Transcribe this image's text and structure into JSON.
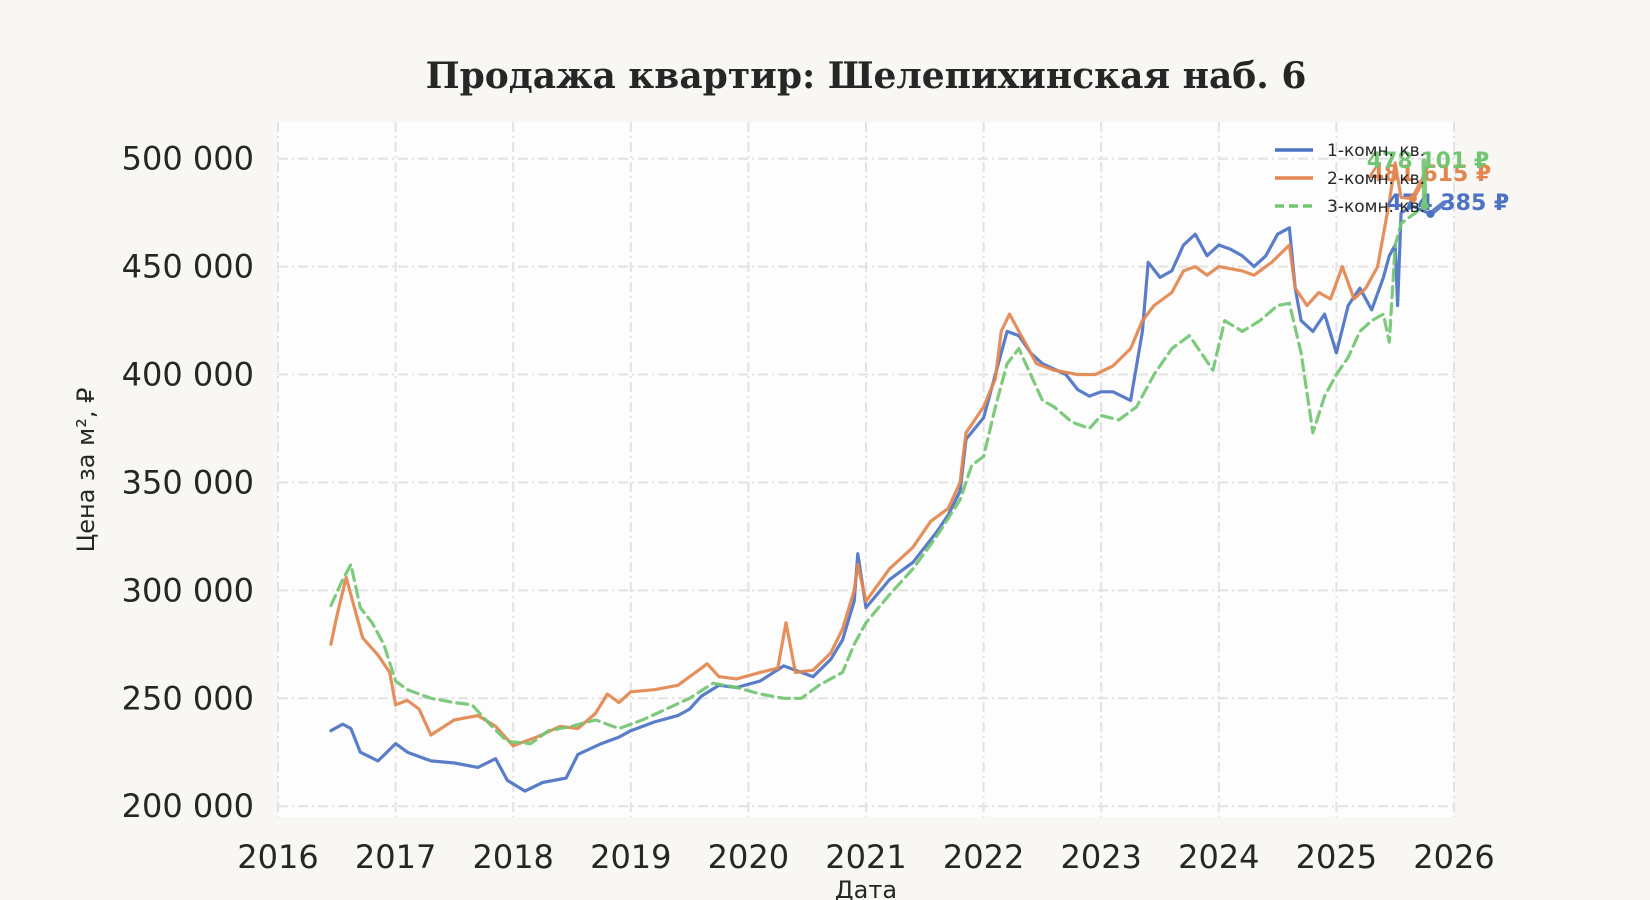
{
  "chart_data": {
    "type": "line",
    "title": "Продажа квартир: Шелепихинская наб. 6",
    "xlabel": "Дата",
    "ylabel": "Цена за м², ₽",
    "xlim": [
      2016,
      2026
    ],
    "ylim": [
      195000,
      517000
    ],
    "x_ticks": [
      2016,
      2017,
      2018,
      2019,
      2020,
      2021,
      2022,
      2023,
      2024,
      2025,
      2026
    ],
    "x_tick_labels": [
      "2016",
      "2017",
      "2018",
      "2019",
      "2020",
      "2021",
      "2022",
      "2023",
      "2024",
      "2025",
      "2026"
    ],
    "y_ticks": [
      200000,
      250000,
      300000,
      350000,
      400000,
      450000,
      500000
    ],
    "y_tick_labels": [
      "200 000",
      "250 000",
      "300 000",
      "350 000",
      "400 000",
      "450 000",
      "500 000"
    ],
    "grid": true,
    "legend_position": "top-right",
    "series": [
      {
        "name": "1-комн. кв.",
        "color": "#4c72c4",
        "style": "solid",
        "end_label": "474 385 ₽",
        "points": [
          [
            2016.45,
            235000
          ],
          [
            2016.55,
            238000
          ],
          [
            2016.62,
            236000
          ],
          [
            2016.7,
            225000
          ],
          [
            2016.85,
            221000
          ],
          [
            2017.0,
            229000
          ],
          [
            2017.1,
            225000
          ],
          [
            2017.3,
            221000
          ],
          [
            2017.5,
            220000
          ],
          [
            2017.7,
            218000
          ],
          [
            2017.85,
            222000
          ],
          [
            2017.95,
            212000
          ],
          [
            2018.1,
            207000
          ],
          [
            2018.25,
            211000
          ],
          [
            2018.45,
            213000
          ],
          [
            2018.55,
            224000
          ],
          [
            2018.75,
            229000
          ],
          [
            2018.9,
            232000
          ],
          [
            2019.0,
            235000
          ],
          [
            2019.2,
            239000
          ],
          [
            2019.4,
            242000
          ],
          [
            2019.5,
            245000
          ],
          [
            2019.6,
            251000
          ],
          [
            2019.75,
            256000
          ],
          [
            2019.9,
            255000
          ],
          [
            2020.1,
            258000
          ],
          [
            2020.3,
            265000
          ],
          [
            2020.45,
            262000
          ],
          [
            2020.55,
            260000
          ],
          [
            2020.7,
            268000
          ],
          [
            2020.8,
            277000
          ],
          [
            2020.9,
            295000
          ],
          [
            2020.93,
            317000
          ],
          [
            2021.0,
            292000
          ],
          [
            2021.2,
            305000
          ],
          [
            2021.4,
            313000
          ],
          [
            2021.6,
            327000
          ],
          [
            2021.7,
            335000
          ],
          [
            2021.8,
            346000
          ],
          [
            2021.85,
            370000
          ],
          [
            2022.0,
            380000
          ],
          [
            2022.1,
            400000
          ],
          [
            2022.2,
            420000
          ],
          [
            2022.3,
            418000
          ],
          [
            2022.4,
            410000
          ],
          [
            2022.5,
            405000
          ],
          [
            2022.7,
            400000
          ],
          [
            2022.8,
            393000
          ],
          [
            2022.9,
            390000
          ],
          [
            2023.0,
            392000
          ],
          [
            2023.1,
            392000
          ],
          [
            2023.25,
            388000
          ],
          [
            2023.35,
            420000
          ],
          [
            2023.4,
            452000
          ],
          [
            2023.5,
            445000
          ],
          [
            2023.6,
            448000
          ],
          [
            2023.7,
            460000
          ],
          [
            2023.8,
            465000
          ],
          [
            2023.9,
            455000
          ],
          [
            2024.0,
            460000
          ],
          [
            2024.1,
            458000
          ],
          [
            2024.2,
            455000
          ],
          [
            2024.3,
            450000
          ],
          [
            2024.4,
            455000
          ],
          [
            2024.5,
            465000
          ],
          [
            2024.6,
            468000
          ],
          [
            2024.65,
            440000
          ],
          [
            2024.7,
            425000
          ],
          [
            2024.8,
            420000
          ],
          [
            2024.9,
            428000
          ],
          [
            2025.0,
            410000
          ],
          [
            2025.1,
            432000
          ],
          [
            2025.2,
            440000
          ],
          [
            2025.3,
            430000
          ],
          [
            2025.4,
            445000
          ],
          [
            2025.45,
            455000
          ],
          [
            2025.5,
            460000
          ],
          [
            2025.52,
            432000
          ],
          [
            2025.55,
            475000
          ],
          [
            2025.65,
            478000
          ],
          [
            2025.8,
            474385
          ]
        ]
      },
      {
        "name": "2-комн. кв.",
        "color": "#e3854f",
        "style": "solid",
        "end_label": "481 615 ₽",
        "points": [
          [
            2016.45,
            275000
          ],
          [
            2016.5,
            288000
          ],
          [
            2016.58,
            306000
          ],
          [
            2016.65,
            292000
          ],
          [
            2016.72,
            278000
          ],
          [
            2016.85,
            270000
          ],
          [
            2016.95,
            262000
          ],
          [
            2017.0,
            247000
          ],
          [
            2017.1,
            249000
          ],
          [
            2017.2,
            245000
          ],
          [
            2017.3,
            233000
          ],
          [
            2017.5,
            240000
          ],
          [
            2017.7,
            242000
          ],
          [
            2017.85,
            237000
          ],
          [
            2018.0,
            228000
          ],
          [
            2018.2,
            232000
          ],
          [
            2018.4,
            237000
          ],
          [
            2018.55,
            236000
          ],
          [
            2018.7,
            243000
          ],
          [
            2018.8,
            252000
          ],
          [
            2018.9,
            248000
          ],
          [
            2019.0,
            253000
          ],
          [
            2019.2,
            254000
          ],
          [
            2019.4,
            256000
          ],
          [
            2019.55,
            262000
          ],
          [
            2019.65,
            266000
          ],
          [
            2019.75,
            260000
          ],
          [
            2019.9,
            259000
          ],
          [
            2020.1,
            262000
          ],
          [
            2020.25,
            264000
          ],
          [
            2020.32,
            285000
          ],
          [
            2020.4,
            262000
          ],
          [
            2020.55,
            263000
          ],
          [
            2020.7,
            271000
          ],
          [
            2020.8,
            282000
          ],
          [
            2020.9,
            300000
          ],
          [
            2020.93,
            312000
          ],
          [
            2021.0,
            295000
          ],
          [
            2021.2,
            310000
          ],
          [
            2021.4,
            320000
          ],
          [
            2021.55,
            332000
          ],
          [
            2021.7,
            338000
          ],
          [
            2021.8,
            350000
          ],
          [
            2021.85,
            373000
          ],
          [
            2022.0,
            385000
          ],
          [
            2022.1,
            398000
          ],
          [
            2022.15,
            420000
          ],
          [
            2022.22,
            428000
          ],
          [
            2022.35,
            415000
          ],
          [
            2022.45,
            405000
          ],
          [
            2022.6,
            402000
          ],
          [
            2022.8,
            400000
          ],
          [
            2022.95,
            400000
          ],
          [
            2023.1,
            404000
          ],
          [
            2023.25,
            412000
          ],
          [
            2023.35,
            425000
          ],
          [
            2023.45,
            432000
          ],
          [
            2023.6,
            438000
          ],
          [
            2023.7,
            448000
          ],
          [
            2023.8,
            450000
          ],
          [
            2023.9,
            446000
          ],
          [
            2024.0,
            450000
          ],
          [
            2024.2,
            448000
          ],
          [
            2024.3,
            446000
          ],
          [
            2024.45,
            452000
          ],
          [
            2024.6,
            460000
          ],
          [
            2024.65,
            440000
          ],
          [
            2024.75,
            432000
          ],
          [
            2024.85,
            438000
          ],
          [
            2024.95,
            435000
          ],
          [
            2025.05,
            450000
          ],
          [
            2025.15,
            435000
          ],
          [
            2025.25,
            440000
          ],
          [
            2025.35,
            450000
          ],
          [
            2025.45,
            480000
          ],
          [
            2025.5,
            498000
          ],
          [
            2025.55,
            482000
          ],
          [
            2025.65,
            481615
          ]
        ]
      },
      {
        "name": "3-комн. кв.",
        "color": "#72c672",
        "style": "dashed",
        "end_label": "478 101 ₽",
        "points": [
          [
            2016.45,
            293000
          ],
          [
            2016.55,
            305000
          ],
          [
            2016.62,
            312000
          ],
          [
            2016.7,
            292000
          ],
          [
            2016.8,
            285000
          ],
          [
            2016.9,
            275000
          ],
          [
            2017.0,
            258000
          ],
          [
            2017.1,
            254000
          ],
          [
            2017.3,
            250000
          ],
          [
            2017.5,
            248000
          ],
          [
            2017.65,
            247000
          ],
          [
            2017.8,
            238000
          ],
          [
            2017.95,
            230000
          ],
          [
            2018.15,
            229000
          ],
          [
            2018.3,
            235000
          ],
          [
            2018.5,
            237000
          ],
          [
            2018.7,
            240000
          ],
          [
            2018.9,
            236000
          ],
          [
            2019.1,
            240000
          ],
          [
            2019.3,
            245000
          ],
          [
            2019.5,
            250000
          ],
          [
            2019.7,
            257000
          ],
          [
            2019.9,
            255000
          ],
          [
            2020.1,
            252000
          ],
          [
            2020.3,
            250000
          ],
          [
            2020.45,
            250000
          ],
          [
            2020.6,
            256000
          ],
          [
            2020.8,
            262000
          ],
          [
            2020.9,
            275000
          ],
          [
            2021.0,
            285000
          ],
          [
            2021.2,
            298000
          ],
          [
            2021.4,
            310000
          ],
          [
            2021.6,
            325000
          ],
          [
            2021.8,
            342000
          ],
          [
            2021.9,
            358000
          ],
          [
            2022.0,
            362000
          ],
          [
            2022.1,
            385000
          ],
          [
            2022.2,
            405000
          ],
          [
            2022.3,
            412000
          ],
          [
            2022.4,
            400000
          ],
          [
            2022.5,
            388000
          ],
          [
            2022.6,
            385000
          ],
          [
            2022.75,
            378000
          ],
          [
            2022.9,
            375000
          ],
          [
            2023.0,
            381000
          ],
          [
            2023.15,
            379000
          ],
          [
            2023.3,
            385000
          ],
          [
            2023.45,
            400000
          ],
          [
            2023.6,
            412000
          ],
          [
            2023.75,
            418000
          ],
          [
            2023.85,
            410000
          ],
          [
            2023.95,
            402000
          ],
          [
            2024.05,
            425000
          ],
          [
            2024.2,
            420000
          ],
          [
            2024.35,
            425000
          ],
          [
            2024.5,
            432000
          ],
          [
            2024.6,
            433000
          ],
          [
            2024.7,
            410000
          ],
          [
            2024.8,
            373000
          ],
          [
            2024.9,
            390000
          ],
          [
            2025.0,
            400000
          ],
          [
            2025.1,
            408000
          ],
          [
            2025.2,
            420000
          ],
          [
            2025.3,
            425000
          ],
          [
            2025.4,
            428000
          ],
          [
            2025.45,
            415000
          ],
          [
            2025.5,
            460000
          ],
          [
            2025.55,
            470000
          ],
          [
            2025.75,
            478101
          ]
        ]
      }
    ]
  }
}
